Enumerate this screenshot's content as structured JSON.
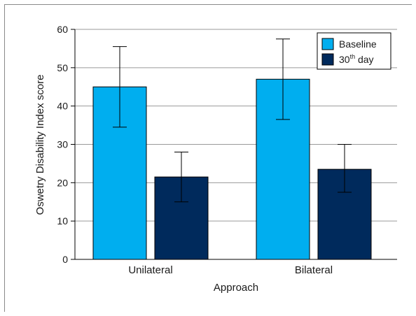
{
  "colors": {
    "baseline": "#00aeef",
    "day30": "#002a5c",
    "grid": "#9a9a9a",
    "axis": "#000000",
    "frame": "#8a8a8a"
  },
  "chart_data": {
    "type": "bar",
    "xlabel": "Approach",
    "ylabel": "Oswetry Disability Index score",
    "categories": [
      "Unilateral",
      "Bilateral"
    ],
    "ylim": [
      0,
      60
    ],
    "yticks": [
      "0",
      "10",
      "20",
      "30",
      "40",
      "50",
      "60"
    ],
    "grid": true,
    "legend_position": "top-right",
    "series": [
      {
        "name": "Baseline",
        "values": [
          45,
          47
        ],
        "error_low": [
          34.5,
          36.5
        ],
        "error_high": [
          55.5,
          57.5
        ]
      },
      {
        "name": "30th day",
        "name_parts": [
          "30",
          "th",
          " day"
        ],
        "values": [
          21.5,
          23.5
        ],
        "error_low": [
          15,
          17.5
        ],
        "error_high": [
          28,
          30
        ]
      }
    ]
  }
}
